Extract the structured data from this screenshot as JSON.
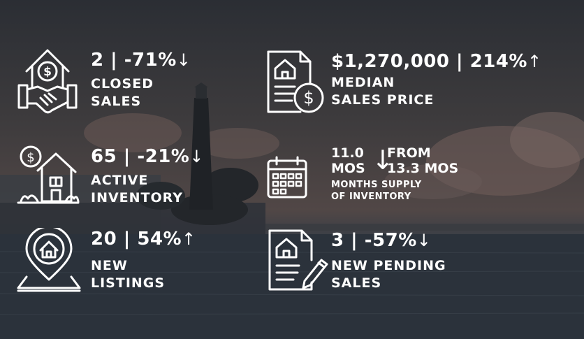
{
  "stats": [
    {
      "value": "2",
      "change": "-71%",
      "arrow": "↓",
      "label_line1": "CLOSED",
      "label_line2": "SALES",
      "icon": "handshake-house-icon"
    },
    {
      "value": "$1,270,000",
      "change": "214%",
      "arrow": "↑",
      "label_line1": "MEDIAN",
      "label_line2": "SALES PRICE",
      "icon": "document-dollar-icon"
    },
    {
      "value": "65",
      "change": "-21%",
      "arrow": "↓",
      "label_line1": "ACTIVE",
      "label_line2": "INVENTORY",
      "icon": "house-dollar-icon"
    },
    {
      "value": "20",
      "change": "54%",
      "arrow": "↑",
      "label_line1": "NEW",
      "label_line2": "LISTINGS",
      "icon": "map-pin-house-icon"
    },
    {
      "value": "3",
      "change": "-57%",
      "arrow": "↓",
      "label_line1": "NEW PENDING",
      "label_line2": "SALES",
      "icon": "document-pen-icon"
    }
  ],
  "supply": {
    "current_line1": "11.0",
    "current_line2": "MOS",
    "arrow": "↓",
    "previous_line1": "FROM",
    "previous_line2": "13.3 MOS",
    "label_line1": "MONTHS SUPPLY",
    "label_line2": "OF INVENTORY",
    "icon": "calendar-icon"
  },
  "separator": "|"
}
